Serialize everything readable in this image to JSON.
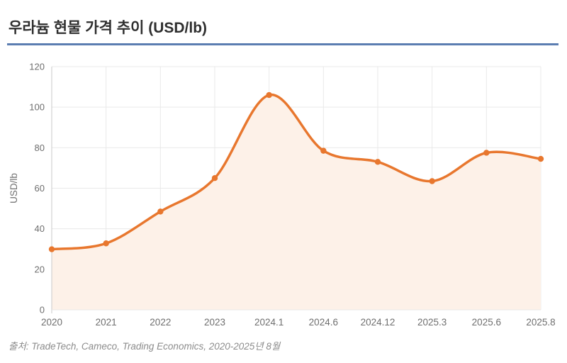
{
  "page": {
    "title": "우라늄 현물 가격 추이 (USD/lb)",
    "source": "출처: TradeTech, Cameco, Trading Economics, 2020-2025년 8월"
  },
  "colors": {
    "line": "#e8772e",
    "marker": "#e8772e",
    "area_fill": "#fdf1e8",
    "title_underline": "#5b7db1",
    "grid": "#e9e9e9",
    "axis": "#c9c9c9",
    "tick_text": "#6e6e6e",
    "title_text": "#2e2e2e",
    "source_text": "#8c8c8c"
  },
  "chart_data": {
    "type": "area",
    "title": "우라늄 현물 가격 추이 (USD/lb)",
    "categories": [
      "2020",
      "2021",
      "2022",
      "2023",
      "2024.1",
      "2024.6",
      "2024.12",
      "2025.3",
      "2025.6",
      "2025.8"
    ],
    "values": [
      29.9,
      32.8,
      48.5,
      65.0,
      106.0,
      78.5,
      73.0,
      63.5,
      77.5,
      74.5
    ],
    "xlabel": "",
    "ylabel": "USD/lb",
    "ylim": [
      0,
      120
    ],
    "ytick_step": 20,
    "yticks": [
      0,
      20,
      40,
      60,
      80,
      100,
      120
    ],
    "grid": true,
    "legend": false,
    "smooth": true,
    "markers": true
  }
}
